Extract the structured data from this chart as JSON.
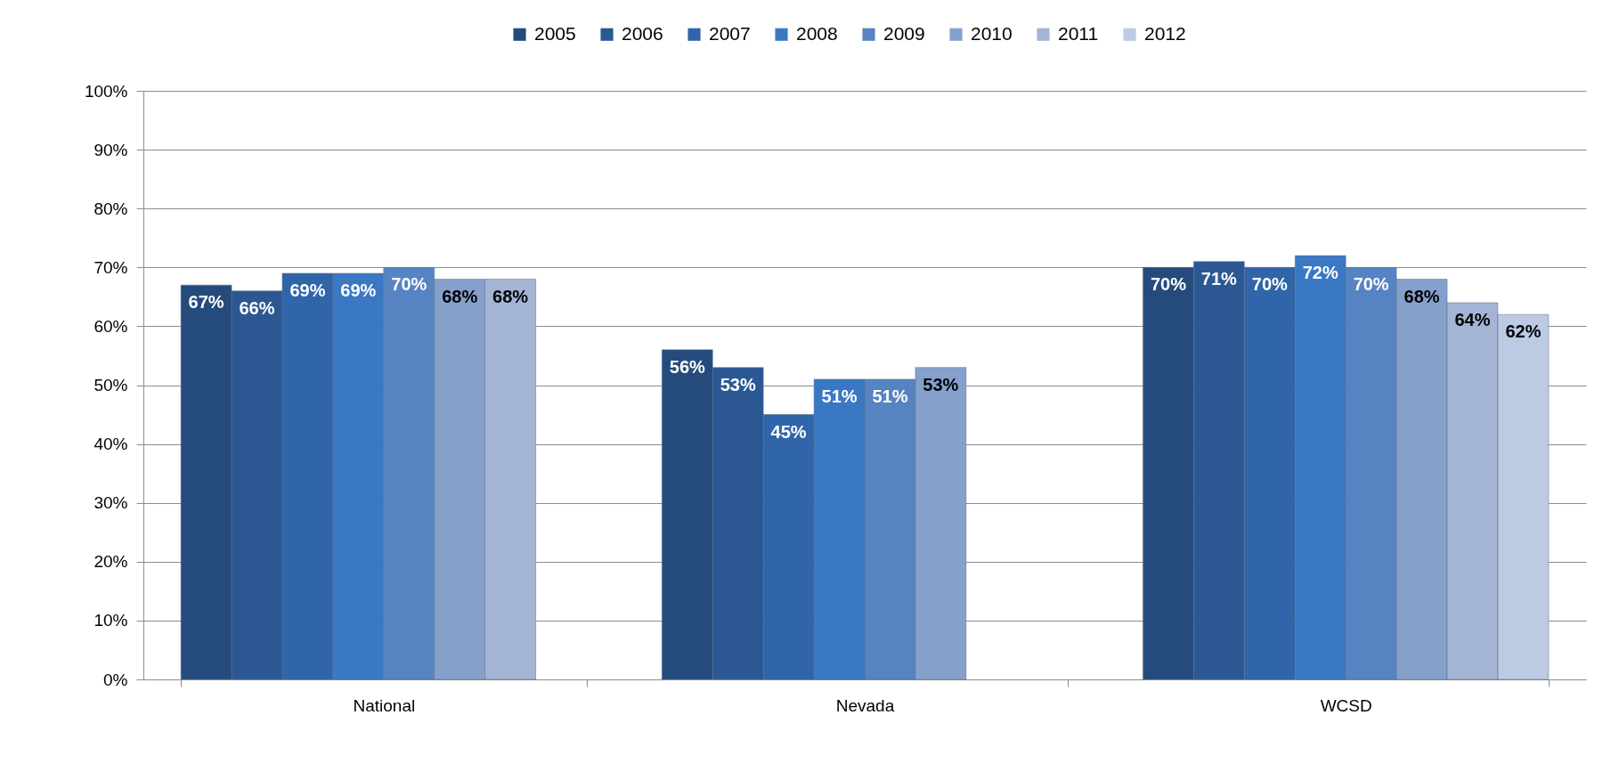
{
  "chart_data": {
    "type": "bar",
    "categories": [
      "National",
      "Nevada",
      "WCSD"
    ],
    "series": [
      {
        "name": "2005",
        "color": "#254b7c",
        "values": [
          67,
          56,
          70
        ],
        "value_labels": [
          "67%",
          "56%",
          "70%"
        ]
      },
      {
        "name": "2006",
        "color": "#2b5893",
        "values": [
          66,
          53,
          71
        ],
        "value_labels": [
          "66%",
          "53%",
          "71%"
        ]
      },
      {
        "name": "2007",
        "color": "#3065aa",
        "values": [
          69,
          45,
          70
        ],
        "value_labels": [
          "69%",
          "45%",
          "70%"
        ]
      },
      {
        "name": "2008",
        "color": "#3b78c4",
        "values": [
          69,
          51,
          72
        ],
        "value_labels": [
          "69%",
          "51%",
          "72%"
        ]
      },
      {
        "name": "2009",
        "color": "#5684c2",
        "values": [
          70,
          51,
          70
        ],
        "value_labels": [
          "70%",
          "51%",
          "70%"
        ]
      },
      {
        "name": "2010",
        "color": "#85a0cb",
        "values": [
          68,
          53,
          68
        ],
        "value_labels": [
          "68%",
          "53%",
          "68%"
        ]
      },
      {
        "name": "2011",
        "color": "#a3b4d5",
        "values": [
          68,
          null,
          64
        ],
        "value_labels": [
          "68%",
          null,
          "64%"
        ]
      },
      {
        "name": "2012",
        "color": "#bccae3",
        "values": [
          null,
          null,
          62
        ],
        "value_labels": [
          null,
          null,
          "62%"
        ]
      }
    ],
    "ylim": [
      0,
      100
    ],
    "yticks": [
      {
        "value": 0,
        "label": "0%"
      },
      {
        "value": 10,
        "label": "10%"
      },
      {
        "value": 20,
        "label": "20%"
      },
      {
        "value": 30,
        "label": "30%"
      },
      {
        "value": 40,
        "label": "40%"
      },
      {
        "value": 50,
        "label": "50%"
      },
      {
        "value": 60,
        "label": "60%"
      },
      {
        "value": 70,
        "label": "70%"
      },
      {
        "value": 80,
        "label": "80%"
      },
      {
        "value": 90,
        "label": "90%"
      },
      {
        "value": 100,
        "label": "100%"
      }
    ],
    "grid": "y",
    "legend": "top"
  }
}
